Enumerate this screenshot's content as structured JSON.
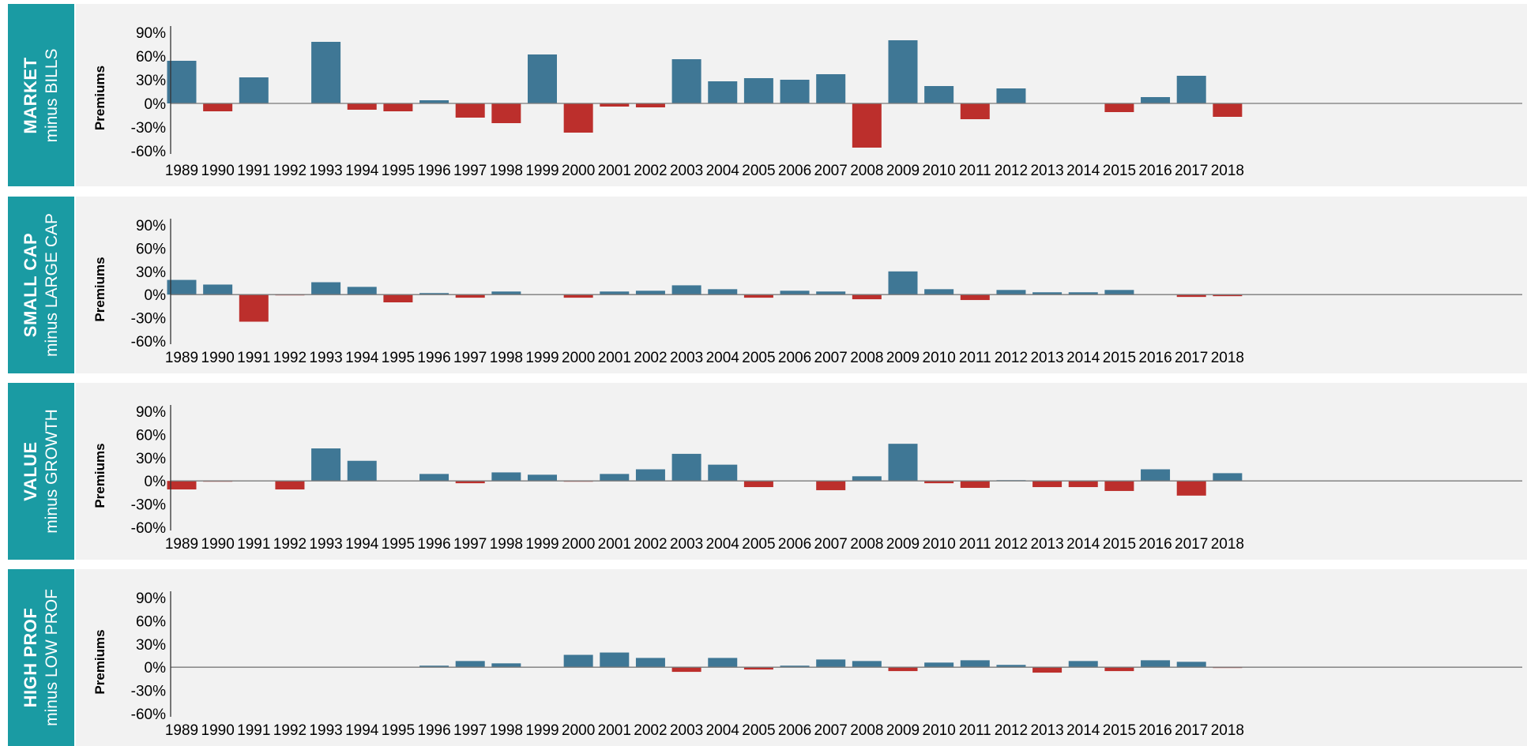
{
  "colors": {
    "positive": "#3f7795",
    "negative": "#bc2f2c",
    "side_bar": "#1a9ba3",
    "plot_bg": "#f2f2f2"
  },
  "chart_data": [
    {
      "type": "bar",
      "side_label": [
        "MARKET",
        "minus BILLS"
      ],
      "ylabel": "Premiums",
      "ylim": [
        -60,
        90
      ],
      "yticks": [
        -60,
        -30,
        0,
        30,
        60,
        90
      ],
      "ytick_labels": [
        "-60%",
        "-30%",
        "0%",
        "30%",
        "60%",
        "90%"
      ],
      "categories": [
        "1989",
        "1990",
        "1991",
        "1992",
        "1993",
        "1994",
        "1995",
        "1996",
        "1997",
        "1998",
        "1999",
        "2000",
        "2001",
        "2002",
        "2003",
        "2004",
        "2005",
        "2006",
        "2007",
        "2008",
        "2009",
        "2010",
        "2011",
        "2012",
        "2013",
        "2014",
        "2015",
        "2016",
        "2017",
        "2018"
      ],
      "values": [
        54,
        -10,
        33,
        0,
        78,
        -8,
        -10,
        4,
        -18,
        -25,
        62,
        -37,
        -4,
        -5,
        56,
        28,
        32,
        30,
        37,
        -56,
        80,
        22,
        -20,
        19,
        0,
        0,
        -11,
        8,
        35,
        -17
      ]
    },
    {
      "type": "bar",
      "side_label": [
        "SMALL CAP",
        "minus LARGE CAP"
      ],
      "ylabel": "Premiums",
      "ylim": [
        -60,
        90
      ],
      "yticks": [
        -60,
        -30,
        0,
        30,
        60,
        90
      ],
      "ytick_labels": [
        "-60%",
        "-30%",
        "0%",
        "30%",
        "60%",
        "90%"
      ],
      "categories": [
        "1989",
        "1990",
        "1991",
        "1992",
        "1993",
        "1994",
        "1995",
        "1996",
        "1997",
        "1998",
        "1999",
        "2000",
        "2001",
        "2002",
        "2003",
        "2004",
        "2005",
        "2006",
        "2007",
        "2008",
        "2009",
        "2010",
        "2011",
        "2012",
        "2013",
        "2014",
        "2015",
        "2016",
        "2017",
        "2018"
      ],
      "values": [
        19,
        13,
        -35,
        -1,
        16,
        10,
        -10,
        2,
        -4,
        4,
        0,
        -4,
        4,
        5,
        12,
        7,
        -4,
        5,
        4,
        -6,
        30,
        7,
        -7,
        6,
        3,
        3,
        6,
        0,
        -3,
        -2
      ]
    },
    {
      "type": "bar",
      "side_label": [
        "VALUE",
        "minus GROWTH"
      ],
      "ylabel": "Premiums",
      "ylim": [
        -60,
        90
      ],
      "yticks": [
        -60,
        -30,
        0,
        30,
        60,
        90
      ],
      "ytick_labels": [
        "-60%",
        "-30%",
        "0%",
        "30%",
        "60%",
        "90%"
      ],
      "categories": [
        "1989",
        "1990",
        "1991",
        "1992",
        "1993",
        "1994",
        "1995",
        "1996",
        "1997",
        "1998",
        "1999",
        "2000",
        "2001",
        "2002",
        "2003",
        "2004",
        "2005",
        "2006",
        "2007",
        "2008",
        "2009",
        "2010",
        "2011",
        "2012",
        "2013",
        "2014",
        "2015",
        "2016",
        "2017",
        "2018"
      ],
      "values": [
        -11,
        -1,
        0,
        -11,
        42,
        26,
        0,
        9,
        -3,
        11,
        8,
        -1,
        9,
        15,
        35,
        21,
        -8,
        0,
        -12,
        6,
        48,
        -3,
        -9,
        1,
        -8,
        -8,
        -13,
        15,
        -19,
        10
      ]
    },
    {
      "type": "bar",
      "side_label": [
        "HIGH PROF",
        "minus LOW PROF"
      ],
      "ylabel": "Premiums",
      "ylim": [
        -60,
        90
      ],
      "yticks": [
        -60,
        -30,
        0,
        30,
        60,
        90
      ],
      "ytick_labels": [
        "-60%",
        "-30%",
        "0%",
        "30%",
        "60%",
        "90%"
      ],
      "categories": [
        "1989",
        "1990",
        "1991",
        "1992",
        "1993",
        "1994",
        "1995",
        "1996",
        "1997",
        "1998",
        "1999",
        "2000",
        "2001",
        "2002",
        "2003",
        "2004",
        "2005",
        "2006",
        "2007",
        "2008",
        "2009",
        "2010",
        "2011",
        "2012",
        "2013",
        "2014",
        "2015",
        "2016",
        "2017",
        "2018"
      ],
      "values": [
        0,
        0,
        0,
        0,
        0,
        0,
        0,
        2,
        8,
        5,
        0,
        16,
        19,
        12,
        -6,
        12,
        -3,
        2,
        10,
        8,
        -5,
        6,
        9,
        3,
        -7,
        8,
        -5,
        9,
        7,
        -1
      ]
    }
  ]
}
